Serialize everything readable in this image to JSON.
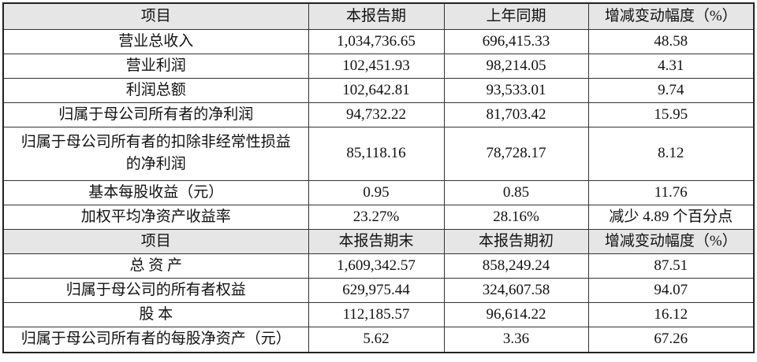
{
  "section1": {
    "headers": [
      "项目",
      "本报告期",
      "上年同期",
      "增减变动幅度（%）"
    ],
    "rows": [
      [
        "营业总收入",
        "1,034,736.65",
        "696,415.33",
        "48.58"
      ],
      [
        "营业利润",
        "102,451.93",
        "98,214.05",
        "4.31"
      ],
      [
        "利润总额",
        "102,642.81",
        "93,533.01",
        "9.74"
      ],
      [
        "归属于母公司所有者的净利润",
        "94,732.22",
        "81,703.42",
        "15.95"
      ],
      [
        "归属于母公司所有者的扣除非经常性损益的净利润",
        "85,118.16",
        "78,728.17",
        "8.12"
      ],
      [
        "基本每股收益（元）",
        "0.95",
        "0.85",
        "11.76"
      ],
      [
        "加权平均净资产收益率",
        "23.27%",
        "28.16%",
        "减少 4.89 个百分点"
      ]
    ]
  },
  "section2": {
    "headers": [
      "项目",
      "本报告期末",
      "本报告期初",
      "增减变动幅度（%）"
    ],
    "rows": [
      [
        "总 资 产",
        "1,609,342.57",
        "858,249.24",
        "87.51"
      ],
      [
        "归属于母公司的所有者权益",
        "629,975.44",
        "324,607.58",
        "94.07"
      ],
      [
        "股 本",
        "112,185.57",
        "96,614.22",
        "16.12"
      ],
      [
        "归属于母公司所有者的每股净资产（元）",
        "5.62",
        "3.36",
        "67.26"
      ]
    ]
  }
}
